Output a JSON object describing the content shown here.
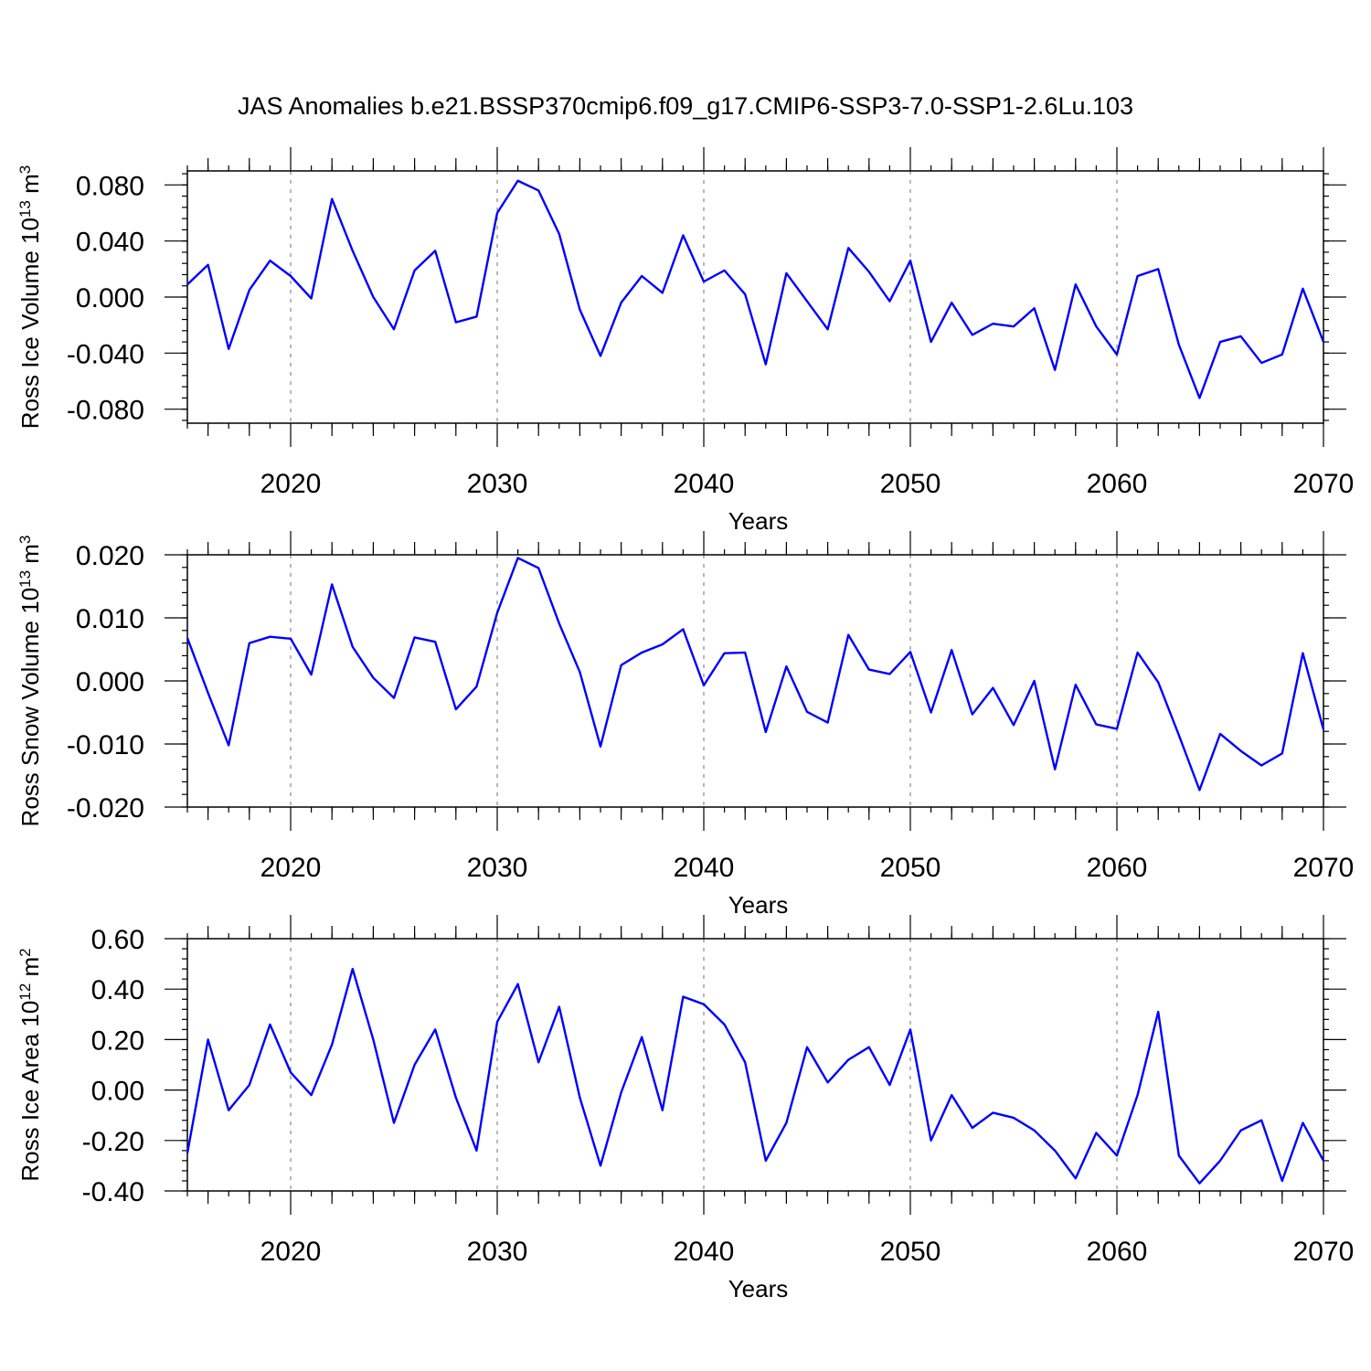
{
  "title": "JAS Anomalies b.e21.BSSP370cmip6.f09_g17.CMIP6-SSP3-7.0-SSP1-2.6Lu.103",
  "colors": {
    "line": "#0000ff",
    "grid": "#888888",
    "axis": "#000000"
  },
  "chart_data": [
    {
      "type": "line",
      "ylabel": "Ross Ice Volume 10",
      "ylabel_exponent": "13",
      "ylabel_unit": "m",
      "ylabel_unit_exponent": "3",
      "xlabel": "Years",
      "xlim": [
        2015,
        2070
      ],
      "ylim": [
        -0.09,
        0.09
      ],
      "yticks": [
        -0.08,
        -0.04,
        0.0,
        0.04,
        0.08
      ],
      "ytick_labels": [
        "-0.080",
        "-0.040",
        "0.000",
        "0.040",
        "0.080"
      ],
      "yminor_step": 0.008,
      "xticks": [
        2020,
        2030,
        2040,
        2050,
        2060,
        2070
      ],
      "xtick_labels": [
        "2020",
        "2030",
        "2040",
        "2050",
        "2060",
        "2070"
      ],
      "grid": "vertical dashed at major x ticks",
      "x": [
        2015,
        2016,
        2017,
        2018,
        2019,
        2020,
        2021,
        2022,
        2023,
        2024,
        2025,
        2026,
        2027,
        2028,
        2029,
        2030,
        2031,
        2032,
        2033,
        2034,
        2035,
        2036,
        2037,
        2038,
        2039,
        2040,
        2041,
        2042,
        2043,
        2044,
        2045,
        2046,
        2047,
        2048,
        2049,
        2050,
        2051,
        2052,
        2053,
        2054,
        2055,
        2056,
        2057,
        2058,
        2059,
        2060,
        2061,
        2062,
        2063,
        2064,
        2065,
        2066,
        2067,
        2068,
        2069,
        2070
      ],
      "series": [
        {
          "values": [
            0.009,
            0.023,
            -0.037,
            0.005,
            0.026,
            0.015,
            -0.001,
            0.07,
            0.033,
            0.0,
            -0.023,
            0.019,
            0.033,
            -0.018,
            -0.014,
            0.06,
            0.083,
            0.076,
            0.045,
            -0.009,
            -0.042,
            -0.004,
            0.015,
            0.003,
            0.044,
            0.011,
            0.019,
            0.002,
            -0.048,
            0.017,
            -0.003,
            -0.023,
            0.035,
            0.018,
            -0.003,
            0.026,
            -0.032,
            -0.004,
            -0.027,
            -0.019,
            -0.021,
            -0.008,
            -0.052,
            0.009,
            -0.021,
            -0.041,
            0.015,
            0.02,
            -0.034,
            -0.072,
            -0.032,
            -0.028,
            -0.047,
            -0.041,
            0.006,
            -0.032
          ]
        }
      ]
    },
    {
      "type": "line",
      "ylabel": "Ross Snow Volume 10",
      "ylabel_exponent": "13",
      "ylabel_unit": "m",
      "ylabel_unit_exponent": "3",
      "xlabel": "Years",
      "xlim": [
        2015,
        2070
      ],
      "ylim": [
        -0.02,
        0.02
      ],
      "yticks": [
        -0.02,
        -0.01,
        0.0,
        0.01,
        0.02
      ],
      "ytick_labels": [
        "-0.020",
        "-0.010",
        "0.000",
        "0.010",
        "0.020"
      ],
      "yminor_step": 0.002,
      "xticks": [
        2020,
        2030,
        2040,
        2050,
        2060,
        2070
      ],
      "xtick_labels": [
        "2020",
        "2030",
        "2040",
        "2050",
        "2060",
        "2070"
      ],
      "grid": "vertical dashed at major x ticks",
      "x": [
        2015,
        2016,
        2017,
        2018,
        2019,
        2020,
        2021,
        2022,
        2023,
        2024,
        2025,
        2026,
        2027,
        2028,
        2029,
        2030,
        2031,
        2032,
        2033,
        2034,
        2035,
        2036,
        2037,
        2038,
        2039,
        2040,
        2041,
        2042,
        2043,
        2044,
        2045,
        2046,
        2047,
        2048,
        2049,
        2050,
        2051,
        2052,
        2053,
        2054,
        2055,
        2056,
        2057,
        2058,
        2059,
        2060,
        2061,
        2062,
        2063,
        2064,
        2065,
        2066,
        2067,
        2068,
        2069,
        2070
      ],
      "series": [
        {
          "values": [
            0.0068,
            -0.0019,
            -0.0102,
            0.006,
            0.007,
            0.0067,
            0.001,
            0.0153,
            0.0054,
            0.0005,
            -0.0027,
            0.0069,
            0.0062,
            -0.0045,
            -0.0009,
            0.0108,
            0.0195,
            0.0179,
            0.0091,
            0.0014,
            -0.0104,
            0.0025,
            0.0045,
            0.0058,
            0.0082,
            -0.0007,
            0.0044,
            0.0045,
            -0.0081,
            0.0023,
            -0.0049,
            -0.0066,
            0.0073,
            0.0018,
            0.0011,
            0.0046,
            -0.005,
            0.0049,
            -0.0053,
            -0.0011,
            -0.007,
            0.0,
            -0.014,
            -0.0006,
            -0.0069,
            -0.0076,
            0.0045,
            -0.0002,
            -0.0086,
            -0.0173,
            -0.0084,
            -0.0111,
            -0.0134,
            -0.0115,
            0.0044,
            -0.0077
          ]
        }
      ]
    },
    {
      "type": "line",
      "ylabel": "Ross Ice Area 10",
      "ylabel_exponent": "12",
      "ylabel_unit": "m",
      "ylabel_unit_exponent": "2",
      "xlabel": "Years",
      "xlim": [
        2015,
        2070
      ],
      "ylim": [
        -0.4,
        0.6
      ],
      "yticks": [
        -0.4,
        -0.2,
        0.0,
        0.2,
        0.4,
        0.6
      ],
      "ytick_labels": [
        "-0.40",
        "-0.20",
        "0.00",
        "0.20",
        "0.40",
        "0.60"
      ],
      "yminor_step": 0.04,
      "xticks": [
        2020,
        2030,
        2040,
        2050,
        2060,
        2070
      ],
      "xtick_labels": [
        "2020",
        "2030",
        "2040",
        "2050",
        "2060",
        "2070"
      ],
      "grid": "vertical dashed at major x ticks",
      "x": [
        2015,
        2016,
        2017,
        2018,
        2019,
        2020,
        2021,
        2022,
        2023,
        2024,
        2025,
        2026,
        2027,
        2028,
        2029,
        2030,
        2031,
        2032,
        2033,
        2034,
        2035,
        2036,
        2037,
        2038,
        2039,
        2040,
        2041,
        2042,
        2043,
        2044,
        2045,
        2046,
        2047,
        2048,
        2049,
        2050,
        2051,
        2052,
        2053,
        2054,
        2055,
        2056,
        2057,
        2058,
        2059,
        2060,
        2061,
        2062,
        2063,
        2064,
        2065,
        2066,
        2067,
        2068,
        2069,
        2070
      ],
      "series": [
        {
          "values": [
            -0.25,
            0.2,
            -0.08,
            0.02,
            0.26,
            0.07,
            -0.02,
            0.18,
            0.48,
            0.2,
            -0.13,
            0.1,
            0.24,
            -0.03,
            -0.24,
            0.27,
            0.42,
            0.11,
            0.33,
            -0.03,
            -0.3,
            -0.01,
            0.21,
            -0.08,
            0.37,
            0.34,
            0.26,
            0.11,
            -0.28,
            -0.13,
            0.17,
            0.03,
            0.12,
            0.17,
            0.02,
            0.24,
            -0.2,
            -0.02,
            -0.15,
            -0.09,
            -0.11,
            -0.16,
            -0.24,
            -0.35,
            -0.17,
            -0.26,
            -0.02,
            0.31,
            -0.26,
            -0.37,
            -0.28,
            -0.16,
            -0.12,
            -0.36,
            -0.13,
            -0.28
          ]
        }
      ]
    }
  ]
}
